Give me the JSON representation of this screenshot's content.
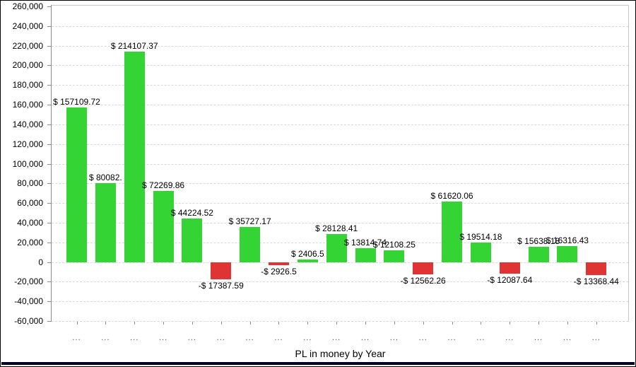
{
  "window": {
    "background": "#ffffff",
    "border_color": "#000000",
    "bottom_bar_color": "#000022"
  },
  "chart_data": {
    "type": "bar",
    "title": "",
    "xlabel": "PL in money by Year",
    "ylabel": "",
    "ylim": [
      -60000,
      260000
    ],
    "ytick_step": 20000,
    "ytick_labels": [
      "260,000",
      "240,000",
      "220,000",
      "200,000",
      "180,000",
      "160,000",
      "140,000",
      "120,000",
      "100,000",
      "80,000",
      "60,000",
      "40,000",
      "20,000",
      "0",
      "-20,000",
      "-40,000",
      "-60,000"
    ],
    "categories": [
      "...",
      "...",
      "...",
      "...",
      "...",
      "...",
      "...",
      "...",
      "...",
      "...",
      "...",
      "...",
      "...",
      "...",
      "...",
      "...",
      "...",
      "...",
      "..."
    ],
    "values": [
      157109.72,
      80082,
      214107.37,
      72269.86,
      44224.52,
      -17387.59,
      35727.17,
      -2926.5,
      2406.5,
      28128.41,
      13814.74,
      12108.25,
      -12562.26,
      61620.06,
      19514.18,
      -12087.64,
      15638.18,
      16316.43,
      -13368.44
    ],
    "labels": [
      "$ 157109.72",
      "$ 80082.",
      "$ 214107.37",
      "$ 72269.86",
      "$ 44224.52",
      "-$ 17387.59",
      "$ 35727.17",
      "-$ 2926.5",
      "$ 2406.5",
      "$ 28128.41",
      "$ 13814.74",
      "$ 12108.25",
      "-$ 12562.26",
      "$ 61620.06",
      "$ 19514.18",
      "-$ 12087.64",
      "$ 15638.18",
      "$ 16316.43",
      "-$ 13368.44"
    ],
    "colors": {
      "positive": "#35d435",
      "negative": "#e03333",
      "gridline": "#d9d9d9",
      "axis": "#8c8c8c",
      "panel_border": "#c8c8c8",
      "label_text": "#000000"
    },
    "grid": "horizontal-dashed",
    "legend": "none"
  }
}
